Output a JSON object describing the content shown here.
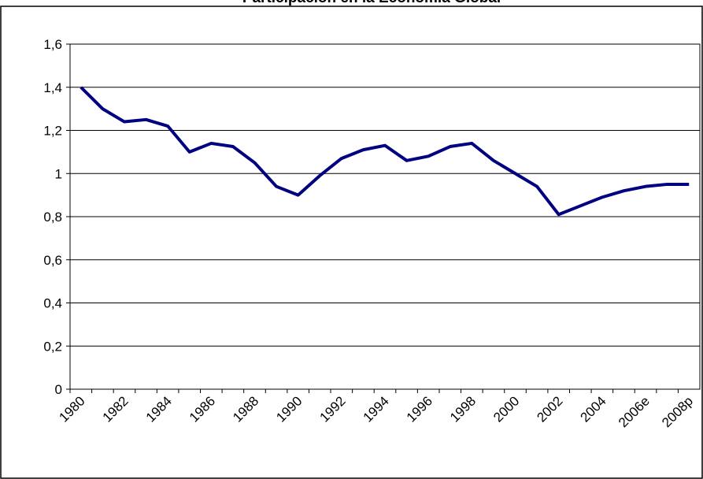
{
  "chart_data": {
    "type": "line",
    "title": "Participación en la Economía Global",
    "categories": [
      "1980",
      null,
      "1982",
      null,
      "1984",
      null,
      "1986",
      null,
      "1988",
      null,
      "1990",
      null,
      "1992",
      null,
      "1994",
      null,
      "1996",
      null,
      "1998",
      null,
      "2000",
      null,
      "2002",
      null,
      "2004",
      null,
      "2006e",
      null,
      "2008p"
    ],
    "series": [
      {
        "name": null,
        "color": "#000080",
        "values": [
          1.4,
          1.3,
          1.24,
          1.25,
          1.22,
          1.1,
          1.14,
          1.125,
          1.05,
          0.94,
          0.9,
          0.99,
          1.07,
          1.11,
          1.13,
          1.06,
          1.08,
          1.125,
          1.14,
          1.06,
          1.0,
          0.94,
          0.81,
          0.85,
          0.89,
          0.92,
          0.94,
          0.95,
          0.95
        ]
      }
    ],
    "ylim": [
      0,
      1.6
    ],
    "yticks": [
      0,
      {
        "value": 0.2,
        "label": "0,2"
      },
      {
        "value": 0.4,
        "label": "0,4"
      },
      {
        "value": 0.6,
        "label": "0,6"
      },
      {
        "value": 0.8,
        "label": "0,8"
      },
      1,
      {
        "value": 1.2,
        "label": "1,2"
      },
      {
        "value": 1.4,
        "label": "1,4"
      },
      {
        "value": 1.6,
        "label": "1,6"
      }
    ],
    "grid": true
  }
}
